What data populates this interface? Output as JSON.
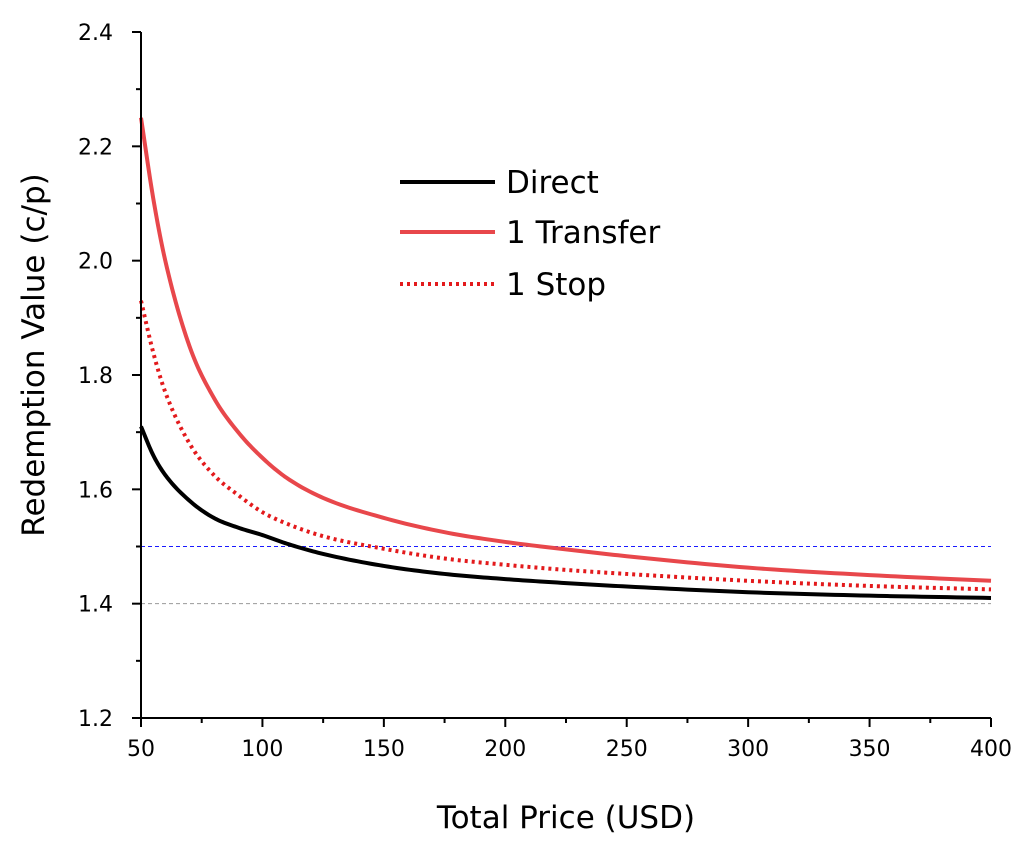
{
  "chart_data": {
    "type": "line",
    "title": "",
    "xlabel": "Total Price (USD)",
    "ylabel": "Redemption Value (c/p)",
    "xlim": [
      50,
      400
    ],
    "ylim": [
      1.2,
      2.4
    ],
    "x_ticks": [
      50,
      100,
      150,
      200,
      250,
      300,
      350,
      400
    ],
    "x_tick_labels": [
      "50",
      "100",
      "150",
      "200",
      "250",
      "300",
      "350",
      "400"
    ],
    "y_ticks": [
      1.2,
      1.4,
      1.6,
      1.8,
      2.0,
      2.2,
      2.4
    ],
    "y_tick_labels": [
      "1.2",
      "1.4",
      "1.6",
      "1.8",
      "2.0",
      "2.2",
      "2.4"
    ],
    "grid": false,
    "legend_position": "upper-center",
    "x": [
      50,
      55,
      60,
      70,
      80,
      90,
      100,
      110,
      125,
      150,
      175,
      200,
      225,
      250,
      300,
      350,
      400
    ],
    "series": [
      {
        "name": "Direct",
        "color": "#000000",
        "style": "solid",
        "values": [
          1.71,
          1.66,
          1.625,
          1.58,
          1.55,
          1.533,
          1.52,
          1.505,
          1.487,
          1.466,
          1.452,
          1.443,
          1.436,
          1.43,
          1.42,
          1.414,
          1.41
        ]
      },
      {
        "name": "1 Transfer",
        "color": "#e8474b",
        "style": "solid",
        "values": [
          2.25,
          2.11,
          2.0,
          1.85,
          1.76,
          1.7,
          1.655,
          1.62,
          1.585,
          1.55,
          1.525,
          1.508,
          1.495,
          1.483,
          1.463,
          1.45,
          1.44
        ]
      },
      {
        "name": "1 Stop",
        "color": "#e31a1c",
        "style": "dotted",
        "values": [
          1.93,
          1.84,
          1.77,
          1.68,
          1.625,
          1.59,
          1.56,
          1.54,
          1.518,
          1.496,
          1.479,
          1.468,
          1.459,
          1.452,
          1.44,
          1.431,
          1.425
        ]
      }
    ],
    "reference_lines": [
      {
        "y": 1.5,
        "color": "#1a1aff",
        "style": "dashed"
      },
      {
        "y": 1.4,
        "color": "#999999",
        "style": "dashed"
      }
    ]
  }
}
